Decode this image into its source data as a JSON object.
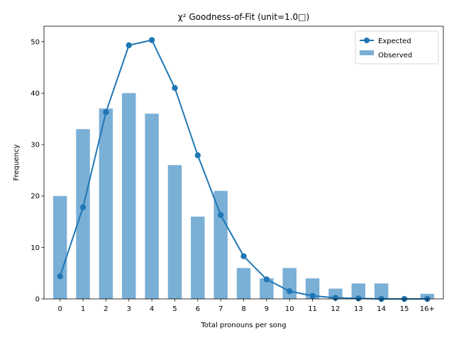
{
  "chart_data": {
    "type": "bar",
    "title": "χ² Goodness-of-Fit (unit=1.0□)",
    "xlabel": "Total pronouns per song",
    "ylabel": "Frequency",
    "categories": [
      "0",
      "1",
      "2",
      "3",
      "4",
      "5",
      "6",
      "7",
      "8",
      "9",
      "10",
      "11",
      "12",
      "13",
      "14",
      "15",
      "16+"
    ],
    "ylim": [
      0,
      53
    ],
    "yticks": [
      0,
      10,
      20,
      30,
      40,
      50
    ],
    "grid": false,
    "legend_position": "top-right",
    "series": [
      {
        "name": "Observed",
        "type": "bar",
        "color": "#7aafd6",
        "values": [
          20,
          33,
          37,
          40,
          36,
          26,
          16,
          21,
          6,
          4,
          6,
          4,
          2,
          3,
          3,
          0,
          1
        ]
      },
      {
        "name": "Expected",
        "type": "line",
        "color": "#1f77b4",
        "marker": "circle",
        "values": [
          4.4,
          17.8,
          36.3,
          49.3,
          50.3,
          41.0,
          27.9,
          16.3,
          8.3,
          3.8,
          1.5,
          0.6,
          0.2,
          0.1,
          0.0,
          0.0,
          0.0
        ]
      }
    ]
  }
}
